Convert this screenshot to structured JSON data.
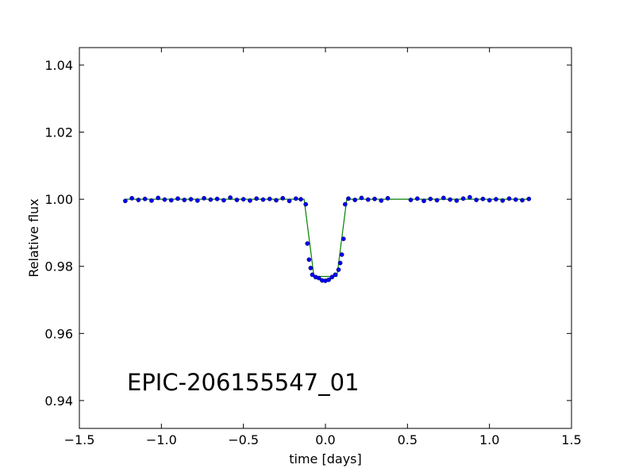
{
  "chart_data": {
    "type": "scatter",
    "xlabel": "time [days]",
    "ylabel": "Relative flux",
    "annotation": "EPIC-206155547_01",
    "xlim": [
      -1.5,
      1.5
    ],
    "xticks": [
      {
        "value": -1.5,
        "label": "−1.5"
      },
      {
        "value": -1,
        "label": "−1.0"
      },
      {
        "value": -0.5,
        "label": "−0.5"
      },
      {
        "value": 0,
        "label": "0.0"
      },
      0.5,
      {
        "value": 1,
        "label": "1.0"
      },
      1.5
    ],
    "ylim": [
      0.9317,
      1.0452
    ],
    "yticks": [
      0.94,
      0.96,
      0.98,
      {
        "value": 1,
        "label": "1.00"
      },
      1.02,
      1.04
    ],
    "series": [
      {
        "type": "scatter",
        "color": "#0000ff",
        "x": [
          -1.22,
          -1.18,
          -1.14,
          -1.1,
          -1.06,
          -1.02,
          -0.98,
          -0.94,
          -0.9,
          -0.86,
          -0.82,
          -0.78,
          -0.74,
          -0.7,
          -0.66,
          -0.62,
          -0.58,
          -0.54,
          -0.5,
          -0.46,
          -0.42,
          -0.38,
          -0.34,
          -0.3,
          -0.26,
          -0.22,
          -0.18,
          -0.15,
          -0.12,
          -0.11,
          -0.1,
          -0.09,
          -0.08,
          -0.06,
          -0.04,
          -0.02,
          0.0,
          0.02,
          0.04,
          0.06,
          0.08,
          0.09,
          0.1,
          0.11,
          0.12,
          0.14,
          0.18,
          0.22,
          0.26,
          0.3,
          0.34,
          0.38,
          0.52,
          0.56,
          0.6,
          0.64,
          0.68,
          0.72,
          0.76,
          0.8,
          0.84,
          0.88,
          0.92,
          0.96,
          1.0,
          1.04,
          1.08,
          1.12,
          1.16,
          1.2,
          1.24
        ],
        "values": [
          0.9995,
          1.0003,
          0.9998,
          1.0001,
          0.9996,
          1.0004,
          0.9999,
          0.9997,
          1.0002,
          0.9998,
          1.0,
          0.9996,
          1.0003,
          0.9999,
          1.0001,
          0.9997,
          1.0005,
          0.9998,
          1.0,
          0.9996,
          1.0002,
          0.9999,
          1.0001,
          0.9997,
          1.0003,
          0.9995,
          1.0002,
          1.0,
          0.9985,
          0.9868,
          0.982,
          0.9795,
          0.9775,
          0.9768,
          0.9765,
          0.9758,
          0.9757,
          0.976,
          0.9768,
          0.9775,
          0.979,
          0.981,
          0.9835,
          0.9882,
          0.9985,
          1.0002,
          0.9998,
          1.0004,
          0.9999,
          1.0001,
          0.9996,
          1.0003,
          0.9998,
          1.0002,
          0.9995,
          1.0001,
          0.9997,
          1.0004,
          0.9999,
          0.9996,
          1.0002,
          1.0006,
          0.9998,
          1.0001,
          0.9997,
          1.0,
          0.9996,
          1.0002,
          0.9999,
          0.9997,
          1.0001
        ]
      },
      {
        "type": "line",
        "color": "#008000",
        "x": [
          -1.22,
          -0.13,
          -0.07,
          0.07,
          0.13,
          1.24
        ],
        "values": [
          1,
          1,
          0.977,
          0.977,
          1,
          1
        ]
      }
    ]
  }
}
